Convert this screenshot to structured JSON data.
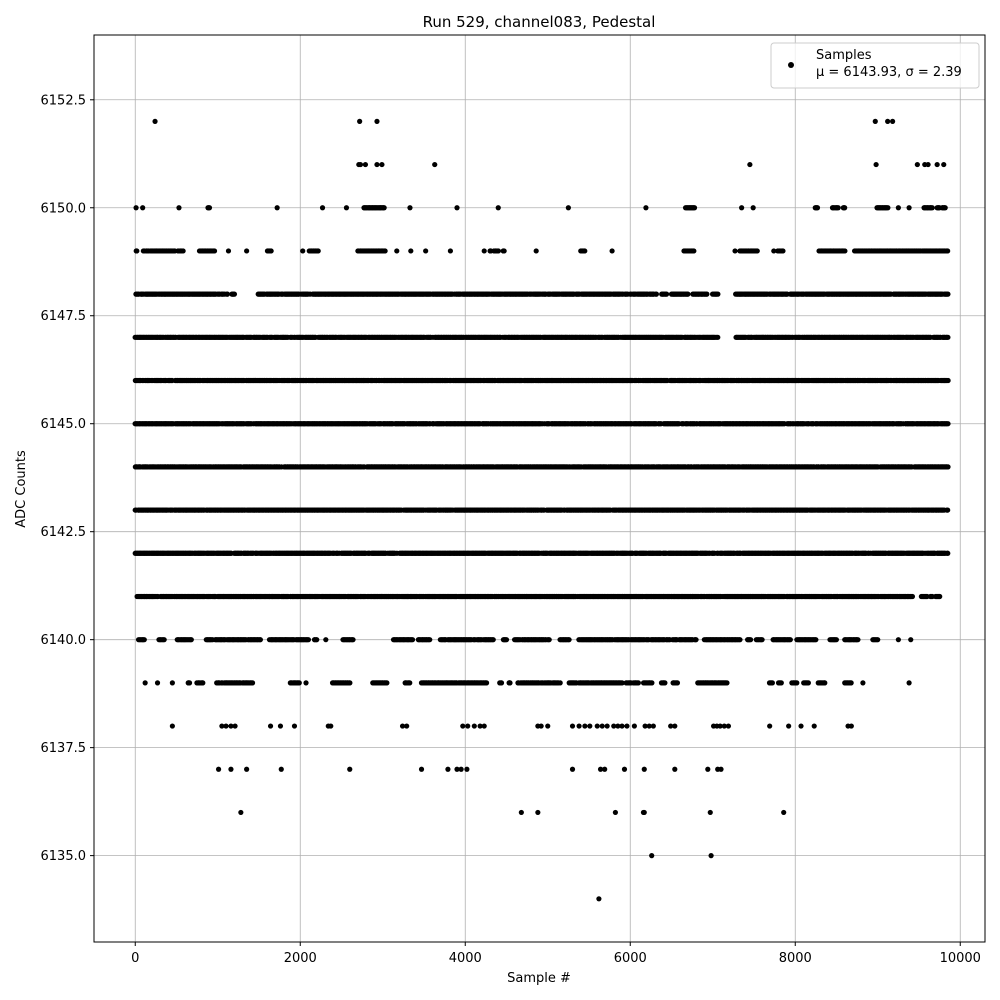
{
  "chart_data": {
    "type": "scatter",
    "title": "Run 529, channel083, Pedestal",
    "xlabel": "Sample #",
    "ylabel": "ADC Counts",
    "xlim": [
      -500,
      10300
    ],
    "ylim": [
      6133,
      6154
    ],
    "x_ticks": [
      0,
      2000,
      4000,
      6000,
      8000,
      10000
    ],
    "x_tick_labels": [
      "0",
      "2000",
      "4000",
      "6000",
      "8000",
      "10000"
    ],
    "y_ticks": [
      6135.0,
      6137.5,
      6140.0,
      6142.5,
      6145.0,
      6147.5,
      6150.0,
      6152.5
    ],
    "y_tick_labels": [
      "6135.0",
      "6137.5",
      "6140.0",
      "6142.5",
      "6145.0",
      "6147.5",
      "6150.0",
      "6152.5"
    ],
    "grid": true,
    "marker_color": "#000000",
    "legend": {
      "placement": "top-right",
      "series_name": "Samples",
      "stats_label": "μ = 6143.93, σ = 2.39"
    },
    "sample_count": 9850,
    "series": [
      {
        "name": "Samples",
        "level_occupancy": [
          {
            "adc": 6134,
            "x": [
              5620
            ]
          },
          {
            "adc": 6135,
            "x": [
              6260,
              6980
            ]
          },
          {
            "adc": 6136,
            "x": [
              1280,
              4680,
              4880,
              5820,
              6160,
              6170,
              6970,
              7860
            ]
          },
          {
            "adc": 6137,
            "x": [
              1010,
              1160,
              1350,
              1770,
              2600,
              3470,
              3790,
              3900,
              3950,
              4020,
              5300,
              5640,
              5690,
              5930,
              6170,
              6540,
              6940,
              7060,
              7100
            ]
          },
          {
            "adc": 6138,
            "x": [
              450,
              1050,
              1100,
              1160,
              1210,
              1640,
              1760,
              1930,
              2340,
              2370,
              3240,
              3290,
              3970,
              4030,
              4110,
              4180,
              4230,
              4880,
              4920,
              5000,
              5300,
              5380,
              5450,
              5510,
              5600,
              5660,
              5720,
              5800,
              5850,
              5900,
              5960,
              6050,
              6180,
              6230,
              6280,
              6490,
              6540,
              7010,
              7050,
              7090,
              7140,
              7190,
              7690,
              7920,
              8070,
              8230,
              8640,
              8680
            ]
          },
          {
            "adc": 6139,
            "x": [
              [
                120,
                120
              ],
              [
                270,
                270
              ],
              [
                450,
                450
              ],
              [
                640,
                660
              ],
              [
                750,
                820
              ],
              [
                990,
                1420
              ],
              [
                1880,
                1990
              ],
              [
                2070,
                2070
              ],
              [
                2390,
                2600
              ],
              [
                2880,
                3050
              ],
              [
                3270,
                3330
              ],
              [
                3470,
                4260
              ],
              [
                4420,
                4440
              ],
              [
                4530,
                4540
              ],
              [
                4640,
                5150
              ],
              [
                5260,
                5900
              ],
              [
                5950,
                6010
              ],
              [
                6040,
                6100
              ],
              [
                6160,
                6260
              ],
              [
                6380,
                6420
              ],
              [
                6520,
                6570
              ],
              [
                6820,
                7170
              ],
              [
                7690,
                7720
              ],
              [
                7800,
                7830
              ],
              [
                7960,
                8020
              ],
              [
                8100,
                8160
              ],
              [
                8280,
                8360
              ],
              [
                8600,
                8680
              ],
              [
                8820,
                8820
              ],
              [
                9380,
                9380
              ]
            ]
          },
          {
            "adc": 6140,
            "x": [
              [
                40,
                110
              ],
              [
                290,
                350
              ],
              [
                510,
                680
              ],
              [
                860,
                1520
              ],
              [
                1630,
                2100
              ],
              [
                2170,
                2200
              ],
              [
                2310,
                2310
              ],
              [
                2520,
                2640
              ],
              [
                3130,
                3360
              ],
              [
                3430,
                3570
              ],
              [
                3700,
                4340
              ],
              [
                4460,
                4500
              ],
              [
                4600,
                5020
              ],
              [
                5150,
                5260
              ],
              [
                5380,
                6800
              ],
              [
                6900,
                7330
              ],
              [
                7420,
                7460
              ],
              [
                7530,
                7600
              ],
              [
                7730,
                7940
              ],
              [
                8020,
                8250
              ],
              [
                8420,
                8500
              ],
              [
                8600,
                8760
              ],
              [
                8940,
                9000
              ],
              [
                9250,
                9250
              ],
              [
                9400,
                9400
              ]
            ]
          },
          {
            "adc": 6141,
            "x": [
              [
                20,
                9420
              ],
              [
                9530,
                9600
              ],
              [
                9640,
                9660
              ],
              [
                9700,
                9750
              ]
            ]
          },
          {
            "adc": 6142,
            "x": [
              [
                0,
                9850
              ]
            ]
          },
          {
            "adc": 6143,
            "x": [
              [
                0,
                9850
              ]
            ]
          },
          {
            "adc": 6144,
            "x": [
              [
                0,
                9850
              ]
            ]
          },
          {
            "adc": 6145,
            "x": [
              [
                0,
                9850
              ]
            ]
          },
          {
            "adc": 6146,
            "x": [
              [
                0,
                9850
              ]
            ]
          },
          {
            "adc": 6147,
            "x": [
              [
                0,
                7060
              ],
              [
                7270,
                9850
              ]
            ]
          },
          {
            "adc": 6148,
            "x": [
              [
                0,
                1120
              ],
              [
                1170,
                1200
              ],
              [
                1490,
                6320
              ],
              [
                6380,
                6440
              ],
              [
                6500,
                6700
              ],
              [
                6760,
                6930
              ],
              [
                7000,
                7060
              ],
              [
                7280,
                9850
              ]
            ]
          },
          {
            "adc": 6149,
            "x": [
              [
                10,
                20
              ],
              [
                100,
                480
              ],
              [
                520,
                580
              ],
              [
                780,
                960
              ],
              [
                1130,
                1130
              ],
              [
                1350,
                1350
              ],
              [
                1600,
                1650
              ],
              [
                2030,
                2030
              ],
              [
                2110,
                2220
              ],
              [
                2700,
                3030
              ],
              [
                3170,
                3170
              ],
              [
                3340,
                3340
              ],
              [
                3520,
                3520
              ],
              [
                3820,
                3820
              ],
              [
                4230,
                4230
              ],
              [
                4300,
                4310
              ],
              [
                4350,
                4400
              ],
              [
                4460,
                4470
              ],
              [
                4860,
                4860
              ],
              [
                5400,
                5450
              ],
              [
                5780,
                5780
              ],
              [
                6650,
                6770
              ],
              [
                7270,
                7270
              ],
              [
                7330,
                7540
              ],
              [
                7740,
                7740
              ],
              [
                7790,
                7850
              ],
              [
                8290,
                8600
              ],
              [
                8720,
                9850
              ]
            ]
          },
          {
            "adc": 6150,
            "x": [
              [
                10,
                10
              ],
              [
                90,
                90
              ],
              [
                530,
                530
              ],
              [
                880,
                900
              ],
              [
                1720,
                1720
              ],
              [
                2270,
                2270
              ],
              [
                2560,
                2560
              ],
              [
                2770,
                3020
              ],
              [
                3330,
                3330
              ],
              [
                3900,
                3900
              ],
              [
                4400,
                4400
              ],
              [
                5250,
                5250
              ],
              [
                6190,
                6190
              ],
              [
                6670,
                6780
              ],
              [
                7350,
                7350
              ],
              [
                7490,
                7490
              ],
              [
                8240,
                8270
              ],
              [
                8450,
                8520
              ],
              [
                8580,
                8600
              ],
              [
                8990,
                9120
              ],
              [
                9250,
                9250
              ],
              [
                9380,
                9380
              ],
              [
                9560,
                9660
              ],
              [
                9720,
                9750
              ],
              [
                9780,
                9820
              ]
            ]
          },
          {
            "adc": 6151,
            "x": [
              2710,
              2730,
              2790,
              2930,
              2990,
              3630,
              7450,
              8980,
              9480,
              9570,
              9610,
              9720,
              9800
            ]
          },
          {
            "adc": 6152,
            "x": [
              240,
              2720,
              2930,
              8970,
              9120,
              9180
            ]
          }
        ]
      }
    ]
  }
}
